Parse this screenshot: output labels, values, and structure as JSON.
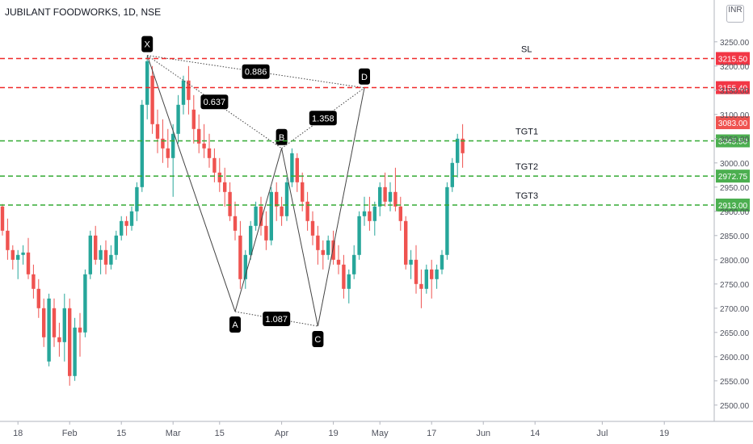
{
  "header": {
    "symbol_title": "JUBILANT FOODWORKS, 1D, NSE",
    "currency": "INR"
  },
  "colors": {
    "up": "#26a69a",
    "down": "#ef5350",
    "sl_line": "#ef2a2a",
    "target_line": "#33aa33",
    "pattern_line": "#444444",
    "label_bg": "#000000"
  },
  "chart_data": {
    "type": "candlestick",
    "title": "JUBILANT FOODWORKS, 1D, NSE",
    "ylim": [
      2478,
      3303
    ],
    "y_ticks": [
      2500,
      2550,
      2600,
      2650,
      2700,
      2750,
      2800,
      2850,
      2900,
      2950,
      3000,
      3050,
      3100,
      3150,
      3200,
      3250
    ],
    "y_tick_labels": [
      "2500.00",
      "2550.00",
      "2600.00",
      "2650.00",
      "2700.00",
      "2750.00",
      "2800.00",
      "2850.00",
      "2900.00",
      "2950.00",
      "3000.00",
      "3050.00",
      "3100.00",
      "3150.00",
      "3200.00",
      "3250.00"
    ],
    "x_ticks": [
      {
        "label": "18",
        "index": 3
      },
      {
        "label": "Feb",
        "index": 13
      },
      {
        "label": "15",
        "index": 23
      },
      {
        "label": "Mar",
        "index": 33
      },
      {
        "label": "15",
        "index": 42
      },
      {
        "label": "Apr",
        "index": 54
      },
      {
        "label": "19",
        "index": 64
      },
      {
        "label": "May",
        "index": 73
      },
      {
        "label": "17",
        "index": 83
      },
      {
        "label": "Jun",
        "index": 93
      },
      {
        "label": "14",
        "index": 103
      },
      {
        "label": "Jul",
        "index": 116
      },
      {
        "label": "19",
        "index": 128
      }
    ],
    "candles": [
      [
        2910,
        2915,
        2850,
        2860
      ],
      [
        2860,
        2885,
        2800,
        2820
      ],
      [
        2820,
        2830,
        2780,
        2800
      ],
      [
        2800,
        2820,
        2760,
        2810
      ],
      [
        2810,
        2830,
        2790,
        2815
      ],
      [
        2815,
        2845,
        2760,
        2770
      ],
      [
        2770,
        2790,
        2720,
        2740
      ],
      [
        2740,
        2760,
        2680,
        2700
      ],
      [
        2700,
        2720,
        2620,
        2640
      ],
      [
        2590,
        2730,
        2580,
        2720
      ],
      [
        2700,
        2720,
        2620,
        2640
      ],
      [
        2640,
        2670,
        2600,
        2630
      ],
      [
        2630,
        2730,
        2590,
        2700
      ],
      [
        2700,
        2720,
        2540,
        2560
      ],
      [
        2560,
        2680,
        2550,
        2660
      ],
      [
        2660,
        2690,
        2600,
        2650
      ],
      [
        2650,
        2780,
        2640,
        2770
      ],
      [
        2770,
        2860,
        2760,
        2850
      ],
      [
        2850,
        2870,
        2790,
        2800
      ],
      [
        2800,
        2830,
        2770,
        2820
      ],
      [
        2820,
        2840,
        2770,
        2790
      ],
      [
        2790,
        2830,
        2780,
        2810
      ],
      [
        2810,
        2860,
        2800,
        2850
      ],
      [
        2850,
        2890,
        2840,
        2880
      ],
      [
        2880,
        2890,
        2850,
        2870
      ],
      [
        2870,
        2910,
        2860,
        2900
      ],
      [
        2900,
        2960,
        2880,
        2950
      ],
      [
        2950,
        3130,
        2940,
        3120
      ],
      [
        3120,
        3220,
        3090,
        3210
      ],
      [
        3180,
        3200,
        3060,
        3080
      ],
      [
        3080,
        3110,
        3020,
        3050
      ],
      [
        3050,
        3090,
        3000,
        3030
      ],
      [
        3030,
        3070,
        2990,
        3010
      ],
      [
        3010,
        3080,
        2930,
        3060
      ],
      [
        3060,
        3140,
        3040,
        3120
      ],
      [
        3120,
        3180,
        3100,
        3170
      ],
      [
        3170,
        3200,
        3100,
        3130
      ],
      [
        3110,
        3140,
        3040,
        3070
      ],
      [
        3070,
        3100,
        3020,
        3040
      ],
      [
        3040,
        3080,
        3010,
        3030
      ],
      [
        3030,
        3060,
        2990,
        3010
      ],
      [
        3010,
        3030,
        2960,
        2980
      ],
      [
        2980,
        3010,
        2940,
        2960
      ],
      [
        2960,
        2990,
        2910,
        2940
      ],
      [
        2940,
        2960,
        2880,
        2890
      ],
      [
        2890,
        2920,
        2840,
        2860
      ],
      [
        2850,
        2880,
        2740,
        2760
      ],
      [
        2760,
        2820,
        2740,
        2810
      ],
      [
        2810,
        2880,
        2800,
        2870
      ],
      [
        2870,
        2920,
        2860,
        2910
      ],
      [
        2910,
        2930,
        2850,
        2870
      ],
      [
        2870,
        2900,
        2820,
        2840
      ],
      [
        2840,
        2950,
        2830,
        2940
      ],
      [
        2940,
        2960,
        2880,
        2910
      ],
      [
        2910,
        2930,
        2870,
        2890
      ],
      [
        2890,
        2970,
        2880,
        2960
      ],
      [
        2960,
        3030,
        2950,
        3020
      ],
      [
        3010,
        3020,
        2940,
        2960
      ],
      [
        2960,
        2980,
        2900,
        2920
      ],
      [
        2920,
        2940,
        2860,
        2880
      ],
      [
        2880,
        2900,
        2830,
        2850
      ],
      [
        2850,
        2870,
        2790,
        2820
      ],
      [
        2820,
        2840,
        2780,
        2810
      ],
      [
        2810,
        2850,
        2800,
        2840
      ],
      [
        2840,
        2860,
        2790,
        2800
      ],
      [
        2800,
        2830,
        2770,
        2790
      ],
      [
        2790,
        2810,
        2720,
        2740
      ],
      [
        2740,
        2780,
        2710,
        2770
      ],
      [
        2770,
        2830,
        2760,
        2810
      ],
      [
        2810,
        2900,
        2800,
        2890
      ],
      [
        2890,
        2930,
        2870,
        2900
      ],
      [
        2900,
        2930,
        2860,
        2880
      ],
      [
        2880,
        2920,
        2850,
        2910
      ],
      [
        2910,
        2960,
        2890,
        2950
      ],
      [
        2950,
        2980,
        2910,
        2920
      ],
      [
        2920,
        2960,
        2900,
        2940
      ],
      [
        2940,
        2990,
        2900,
        2910
      ],
      [
        2910,
        2930,
        2860,
        2880
      ],
      [
        2880,
        2890,
        2780,
        2790
      ],
      [
        2790,
        2820,
        2760,
        2800
      ],
      [
        2800,
        2830,
        2730,
        2750
      ],
      [
        2750,
        2780,
        2700,
        2740
      ],
      [
        2740,
        2790,
        2730,
        2780
      ],
      [
        2780,
        2800,
        2720,
        2760
      ],
      [
        2760,
        2790,
        2740,
        2780
      ],
      [
        2780,
        2820,
        2770,
        2810
      ],
      [
        2810,
        2960,
        2800,
        2950
      ],
      [
        2950,
        3010,
        2940,
        3000
      ],
      [
        3000,
        3060,
        2970,
        3050
      ],
      [
        3050,
        3080,
        2990,
        3020
      ]
    ],
    "horizontal_levels": [
      {
        "name": "SL",
        "value": 3215.5,
        "label": "3215.50",
        "kind": "sl"
      },
      {
        "name": "",
        "value": 3155.4,
        "label": "3155.40",
        "kind": "sl"
      },
      {
        "name": "TGT1",
        "value": 3045.5,
        "label": "3045.50",
        "kind": "target"
      },
      {
        "name": "TGT2",
        "value": 2972.75,
        "label": "2972.75",
        "kind": "target"
      },
      {
        "name": "TGT3",
        "value": 2913.0,
        "label": "2913.00",
        "kind": "target"
      }
    ],
    "current_price": {
      "value": 3083.0,
      "label": "3083.00"
    },
    "pattern_points": [
      {
        "label": "X",
        "index": 28,
        "price": 3222
      },
      {
        "label": "A",
        "index": 45,
        "price": 2693
      },
      {
        "label": "B",
        "index": 54,
        "price": 3030
      },
      {
        "label": "C",
        "index": 61,
        "price": 2663
      },
      {
        "label": "D",
        "index": 70,
        "price": 3155
      }
    ],
    "ratios": [
      {
        "label": "0.886",
        "from": "X",
        "to": "D"
      },
      {
        "label": "0.637",
        "from": "X",
        "to": "B"
      },
      {
        "label": "1.358",
        "from": "B",
        "to": "D"
      },
      {
        "label": "1.087",
        "from": "A",
        "to": "C"
      }
    ]
  }
}
